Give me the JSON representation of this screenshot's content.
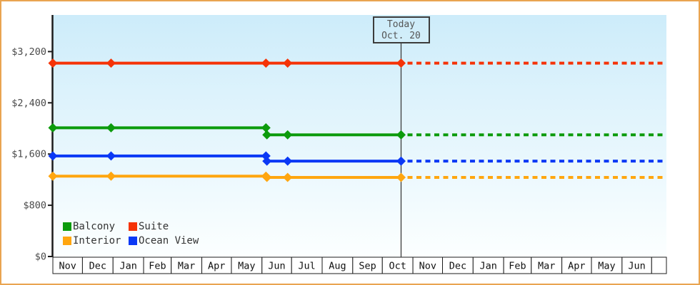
{
  "window": {
    "border_color": "#e9a450",
    "background_color": "#ffffff"
  },
  "chart_data": {
    "type": "line",
    "title": "",
    "description": "Cabin price history by category with dotted forecast after today",
    "x_axis": {
      "unit": "month",
      "labels": [
        "Nov",
        "Dec",
        "Jan",
        "Feb",
        "Mar",
        "Apr",
        "May",
        "Jun",
        "Jul",
        "Aug",
        "Sep",
        "Oct",
        "Nov",
        "Dec",
        "Jan",
        "Feb",
        "Mar",
        "Apr",
        "May",
        "Jun"
      ],
      "month_days": [
        30,
        31,
        31,
        28,
        31,
        30,
        31,
        30,
        31,
        31,
        30,
        31,
        30,
        31,
        31,
        28,
        31,
        30,
        31,
        30
      ],
      "trailing_stub_days": 15,
      "grid": false
    },
    "y_axis": {
      "tick_labels": [
        "$0",
        "$800",
        "$1,600",
        "$2,400",
        "$3,200"
      ],
      "tick_values": [
        0,
        800,
        1600,
        2400,
        3200
      ],
      "currency": "USD",
      "label_color": "#4a4a4a"
    },
    "today": {
      "day": 353,
      "line1": "Today",
      "line2": "Oct. 20"
    },
    "series": [
      {
        "name": "Balcony",
        "color": "#0c9b0c",
        "points": [
          {
            "day": 0,
            "price": 2010
          },
          {
            "day": 59,
            "price": 2010
          },
          {
            "day": 216,
            "price": 2010
          },
          {
            "day": 217,
            "price": 1900
          },
          {
            "day": 238,
            "price": 1900
          },
          {
            "day": 353,
            "price": 1900
          }
        ],
        "forecast_price": 1900
      },
      {
        "name": "Suite",
        "color": "#f53307",
        "points": [
          {
            "day": 0,
            "price": 3020
          },
          {
            "day": 59,
            "price": 3020
          },
          {
            "day": 216,
            "price": 3020
          },
          {
            "day": 238,
            "price": 3020
          },
          {
            "day": 353,
            "price": 3020
          }
        ],
        "forecast_price": 3020
      },
      {
        "name": "Interior",
        "color": "#ffa60f",
        "points": [
          {
            "day": 0,
            "price": 1255
          },
          {
            "day": 59,
            "price": 1255
          },
          {
            "day": 216,
            "price": 1255
          },
          {
            "day": 217,
            "price": 1235
          },
          {
            "day": 238,
            "price": 1235
          },
          {
            "day": 353,
            "price": 1235
          }
        ],
        "forecast_price": 1235
      },
      {
        "name": "Ocean View",
        "color": "#0a38f5",
        "points": [
          {
            "day": 0,
            "price": 1570
          },
          {
            "day": 59,
            "price": 1570
          },
          {
            "day": 216,
            "price": 1570
          },
          {
            "day": 217,
            "price": 1490
          },
          {
            "day": 238,
            "price": 1490
          },
          {
            "day": 353,
            "price": 1490
          }
        ],
        "forecast_price": 1490
      }
    ],
    "legend": {
      "position": "bottom-left-inside-plot",
      "items": [
        {
          "label": "Balcony",
          "color": "#0c9b0c"
        },
        {
          "label": "Suite",
          "color": "#f53307"
        },
        {
          "label": "Interior",
          "color": "#ffa60f"
        },
        {
          "label": "Ocean View",
          "color": "#0a38f5"
        }
      ]
    },
    "plot_background": {
      "top": "#cdecfa",
      "bottom": "#fcffff"
    }
  }
}
